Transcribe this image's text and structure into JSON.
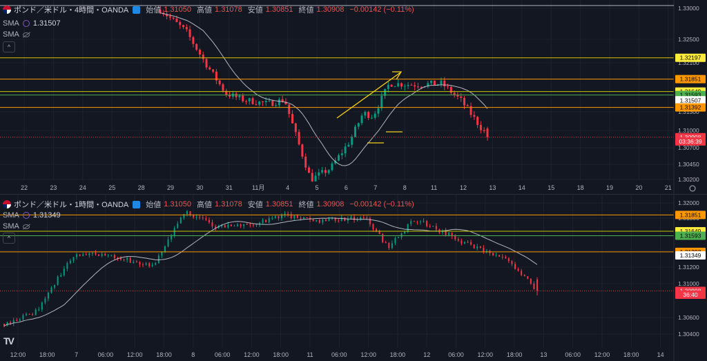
{
  "colors": {
    "bg": "#131722",
    "grid": "#1e222d",
    "up": "#089981",
    "down": "#f23645",
    "sma": "#d1d4dc",
    "axis": "#b2b5be"
  },
  "top": {
    "title": "ポンド／米ドル・4時間・OANDA",
    "open_label": "始値",
    "open": "1.31050",
    "high_label": "高値",
    "high": "1.31078",
    "low_label": "安値",
    "low": "1.30851",
    "close_label": "終値",
    "close": "1.30908",
    "change": "−0.00142 (−0.11%)",
    "sma_name": "SMA",
    "sma_value": "1.31507",
    "sma2_name": "SMA",
    "collapse_icon": "^",
    "y_ticks": [
      "1.33000",
      "1.32500",
      "1.32100",
      "1.31300",
      "1.31000",
      "1.30700",
      "1.30450",
      "1.30200"
    ],
    "x_ticks": [
      "22",
      "23",
      "24",
      "25",
      "28",
      "29",
      "30",
      "31",
      "11月",
      "4",
      "5",
      "6",
      "7",
      "8",
      "11",
      "12",
      "13",
      "14",
      "15",
      "18",
      "19",
      "20",
      "21"
    ],
    "tags": [
      {
        "text": "1.32197",
        "level": 1.32197,
        "bg": "#ffeb3b",
        "fg": "#000000",
        "line": "#e0c000"
      },
      {
        "text": "1.31851",
        "level": 1.31851,
        "bg": "#ff9800",
        "fg": "#000000",
        "line": "#ff9800"
      },
      {
        "text": "1.31649",
        "level": 1.31649,
        "bg": "#ffeb3b",
        "fg": "#000000",
        "line": "#c6c800"
      },
      {
        "text": "1.31593",
        "level": 1.31593,
        "bg": "#4caf50",
        "fg": "#000000",
        "line": "#4caf50"
      },
      {
        "text": "1.31507",
        "level": 1.31507,
        "bg": "#ffffff",
        "fg": "#000000",
        "line": ""
      },
      {
        "text": "1.31392",
        "level": 1.31392,
        "bg": "#ff9800",
        "fg": "#000000",
        "line": "#ff9800"
      },
      {
        "text": "1.30908",
        "level": 1.30908,
        "bg": "#f23645",
        "fg": "#ffffff",
        "line": "#f23645",
        "dashed": true
      },
      {
        "text": "03:36:39",
        "level": 1.3084,
        "bg": "#f23645",
        "fg": "#ffffff",
        "line": ""
      }
    ]
  },
  "bottom": {
    "title": "ポンド／米ドル・1時間・OANDA",
    "open_label": "始値",
    "open": "1.31050",
    "high_label": "高値",
    "high": "1.31078",
    "low_label": "安値",
    "low": "1.30851",
    "close_label": "終値",
    "close": "1.30908",
    "change": "−0.00142 (−0.11%)",
    "sma_name": "SMA",
    "sma_value": "1.31349",
    "sma2_name": "SMA",
    "collapse_icon": "^",
    "y_ticks": [
      "1.32000",
      "1.31800",
      "1.31400",
      "1.31200",
      "1.31000",
      "1.30600",
      "1.30400"
    ],
    "x_ticks": [
      "12:00",
      "18:00",
      "7",
      "06:00",
      "12:00",
      "18:00",
      "8",
      "06:00",
      "12:00",
      "18:00",
      "11",
      "06:00",
      "12:00",
      "18:00",
      "12",
      "06:00",
      "12:00",
      "18:00",
      "13",
      "06:00",
      "12:00",
      "18:00",
      "14"
    ],
    "tags": [
      {
        "text": "1.31851",
        "level": 1.31851,
        "bg": "#ff9800",
        "fg": "#000000",
        "line": "#ff9800"
      },
      {
        "text": "1.31649",
        "level": 1.31649,
        "bg": "#ffeb3b",
        "fg": "#000000",
        "line": "#c6c800"
      },
      {
        "text": "1.31593",
        "level": 1.31593,
        "bg": "#4caf50",
        "fg": "#000000",
        "line": "#4caf50"
      },
      {
        "text": "1.31392",
        "level": 1.31392,
        "bg": "#ff9800",
        "fg": "#000000",
        "line": "#ff9800"
      },
      {
        "text": "1.31349",
        "level": 1.31349,
        "bg": "#ffffff",
        "fg": "#000000",
        "line": ""
      },
      {
        "text": "1.30908",
        "level": 1.30908,
        "bg": "#f23645",
        "fg": "#ffffff",
        "line": "#f23645",
        "dashed": true
      },
      {
        "text": "36:40",
        "level": 1.3086,
        "bg": "#f23645",
        "fg": "#ffffff",
        "line": ""
      }
    ]
  },
  "logo_text": "TV"
}
